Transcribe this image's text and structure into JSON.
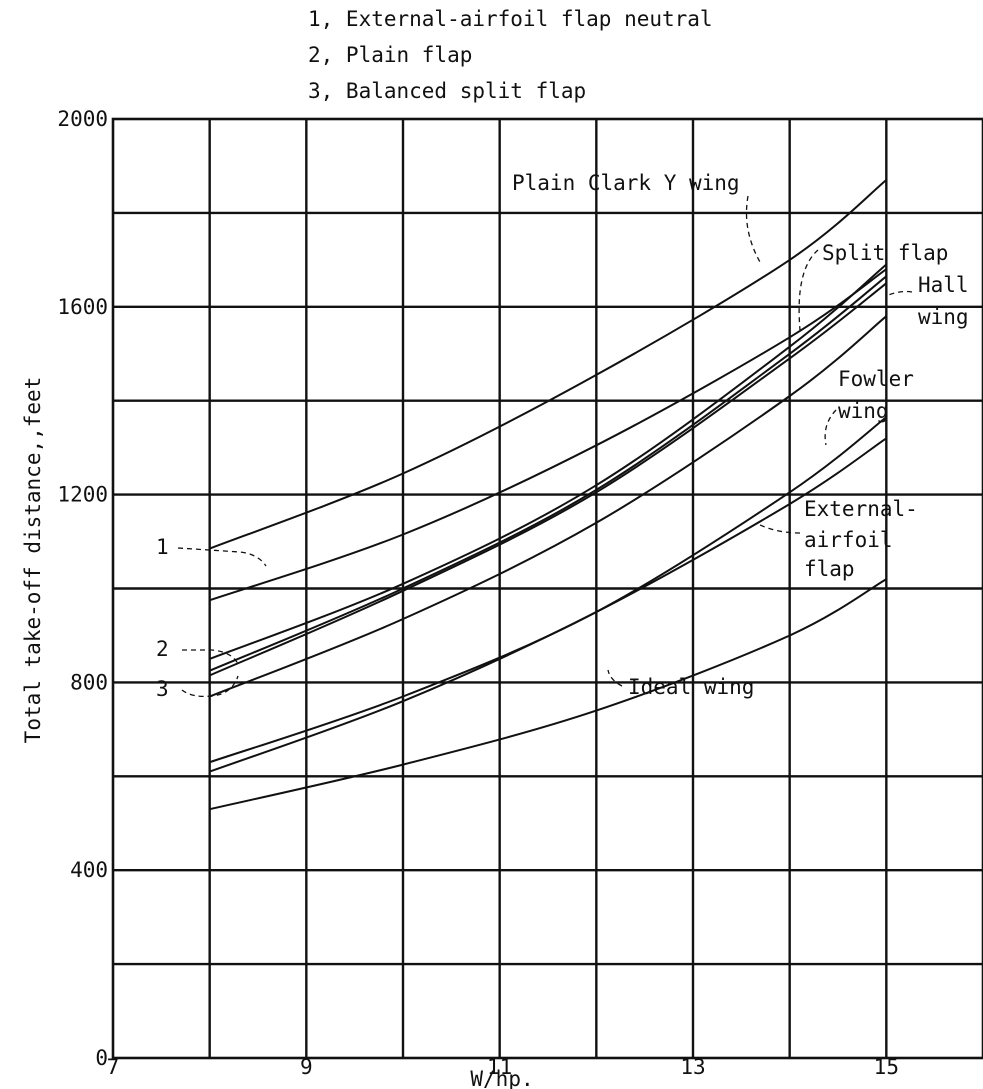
{
  "chart_data": {
    "type": "line",
    "legend": [
      "1, External-airfoil flap neutral",
      "2, Plain flap",
      "3, Balanced split flap"
    ],
    "xlabel": "W/hp.",
    "ylabel": "Total take-off distance,,feet",
    "xlim": [
      7,
      16
    ],
    "ylim": [
      0,
      2000
    ],
    "x_ticks": [
      7,
      9,
      11,
      13,
      15
    ],
    "x_tick_labels": [
      "7",
      "9",
      "11",
      "13",
      "15"
    ],
    "y_ticks": [
      0,
      400,
      800,
      1200,
      1600,
      2000
    ],
    "y_tick_labels": [
      "0",
      "400",
      "800",
      "1200",
      "1600",
      "2000"
    ],
    "grid": true,
    "series": [
      {
        "name": "Plain Clark Y wing",
        "x": [
          8,
          10,
          12,
          14,
          15
        ],
        "y": [
          1085,
          1245,
          1455,
          1700,
          1870
        ]
      },
      {
        "name": "1",
        "x": [
          8,
          10,
          12,
          14,
          15
        ],
        "y": [
          975,
          1115,
          1305,
          1535,
          1680
        ]
      },
      {
        "name": "Split flap",
        "x": [
          8,
          10,
          12,
          14,
          15
        ],
        "y": [
          850,
          1010,
          1220,
          1515,
          1690
        ]
      },
      {
        "name": "Hall wing",
        "x": [
          8,
          10,
          12,
          14,
          15
        ],
        "y": [
          825,
          1000,
          1210,
          1500,
          1665
        ]
      },
      {
        "name": "2",
        "x": [
          8,
          10,
          12,
          14,
          15
        ],
        "y": [
          815,
          995,
          1205,
          1490,
          1650
        ]
      },
      {
        "name": "3",
        "x": [
          8,
          10,
          12,
          14,
          15
        ],
        "y": [
          770,
          935,
          1140,
          1410,
          1580
        ]
      },
      {
        "name": "Fowler wing",
        "x": [
          8,
          10,
          12,
          14,
          15
        ],
        "y": [
          630,
          770,
          950,
          1205,
          1365
        ]
      },
      {
        "name": "External-airfoil flap",
        "x": [
          8,
          10,
          12,
          14,
          15
        ],
        "y": [
          610,
          760,
          950,
          1180,
          1320
        ]
      },
      {
        "name": "Ideal wing",
        "x": [
          8,
          10,
          12,
          14,
          15
        ],
        "y": [
          530,
          625,
          740,
          900,
          1020
        ]
      }
    ],
    "annotations": [
      "Plain Clark Y wing",
      "Split flap",
      "Hall",
      "wing",
      "Fowler",
      "wing",
      "External-",
      "airfoil",
      "flap",
      "Ideal wing",
      "1",
      "2",
      "3"
    ]
  }
}
